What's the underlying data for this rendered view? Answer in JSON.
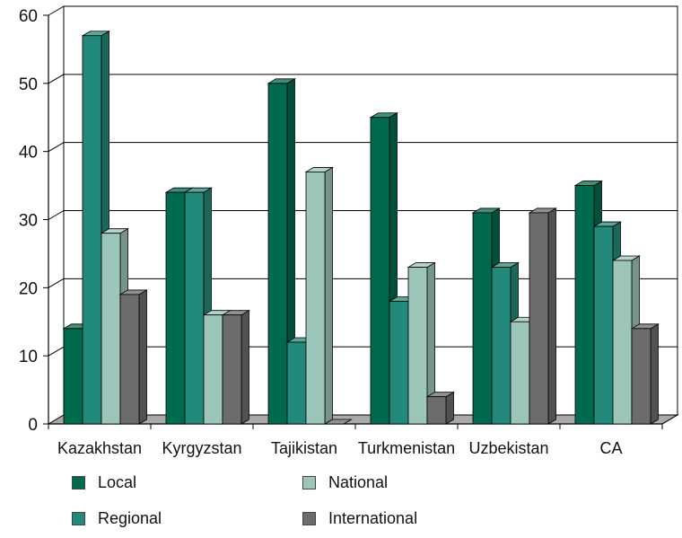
{
  "chart_data": {
    "type": "bar",
    "categories": [
      "Kazakhstan",
      "Kyrgyzstan",
      "Tajikistan",
      "Turkmenistan",
      "Uzbekistan",
      "CA"
    ],
    "series": [
      {
        "name": "Local",
        "values": [
          14,
          34,
          50,
          45,
          31,
          35
        ],
        "color": "#006a4e"
      },
      {
        "name": "Regional",
        "values": [
          57,
          34,
          12,
          18,
          23,
          29
        ],
        "color": "#23897a"
      },
      {
        "name": "National",
        "values": [
          28,
          16,
          37,
          23,
          15,
          24
        ],
        "color": "#9cc6ba"
      },
      {
        "name": "International",
        "values": [
          19,
          16,
          0,
          4,
          31,
          14
        ],
        "color": "#6a6c6e"
      }
    ],
    "yticks": [
      "0",
      "10",
      "20",
      "30",
      "40",
      "50",
      "60"
    ],
    "ylim": [
      0,
      60
    ],
    "grid": true,
    "legend_position": "bottom"
  }
}
